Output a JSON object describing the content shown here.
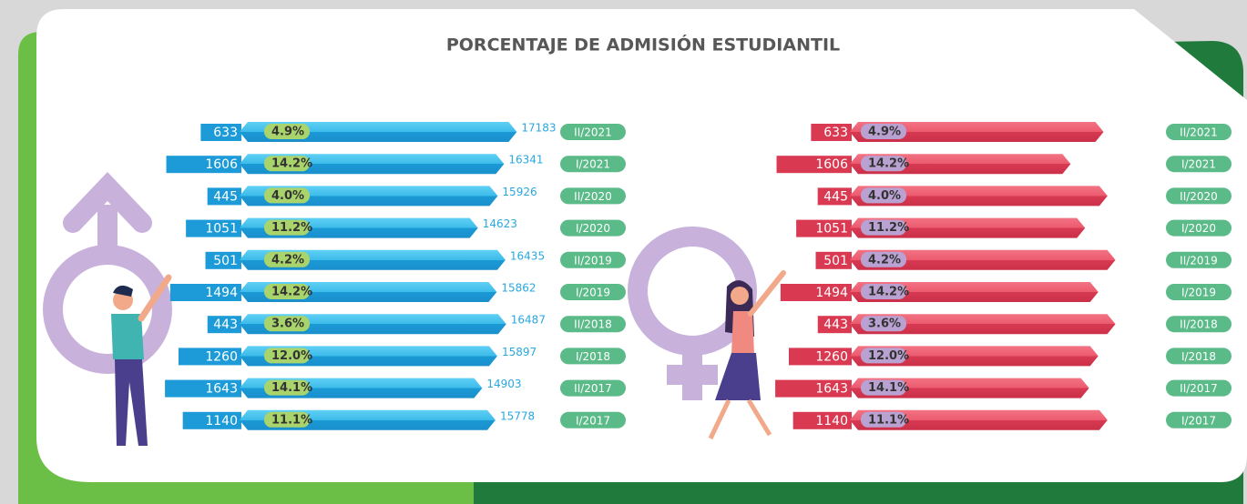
{
  "title": "PORCENTAJE DE ADMISIÓN ESTUDIANTIL",
  "chart_data": [
    {
      "type": "bar",
      "side": "male",
      "color": "#2fb4e6",
      "admitted_color": "#1c9bd8",
      "label_color": "#a9d46c",
      "period_color": "#5bbb88",
      "categories": [
        "II/2021",
        "I/2021",
        "II/2020",
        "I/2020",
        "II/2019",
        "I/2019",
        "II/2018",
        "I/2018",
        "II/2017",
        "I/2017"
      ],
      "admitted": [
        633,
        1606,
        445,
        1051,
        501,
        1494,
        443,
        1260,
        1643,
        1140
      ],
      "admitted_xlim": [
        0,
        1800
      ],
      "admission_labels": [
        "4.9%",
        "14.2%",
        "4.0%",
        "11.2%",
        "4.2%",
        "14.2%",
        "3.6%",
        "12.0%",
        "14.1%",
        "11.1%"
      ],
      "values": [
        17183,
        16341,
        15926,
        14623,
        16435,
        15862,
        16487,
        15897,
        14903,
        15778
      ],
      "xlim": [
        0,
        18000
      ]
    },
    {
      "type": "bar",
      "side": "female",
      "color": "#e84d63",
      "admitted_color": "#d93a52",
      "label_color": "#b9a2d2",
      "period_color": "#5bbb88",
      "categories": [
        "II/2021",
        "I/2021",
        "II/2020",
        "I/2020",
        "II/2019",
        "I/2019",
        "II/2018",
        "I/2018",
        "II/2017",
        "I/2017"
      ],
      "admitted": [
        633,
        1606,
        445,
        1051,
        501,
        1494,
        443,
        1260,
        1643,
        1140
      ],
      "admitted_xlim": [
        0,
        1800
      ],
      "admission_labels": [
        "4.9%",
        "14.2%",
        "4.0%",
        "11.2%",
        "4.2%",
        "14.2%",
        "3.6%",
        "12.0%",
        "14.1%",
        "11.1%"
      ],
      "values": [
        18000,
        15500,
        18300,
        16600,
        18900,
        17600,
        18900,
        17600,
        16900,
        18300
      ],
      "xlim": [
        0,
        19000
      ]
    }
  ]
}
